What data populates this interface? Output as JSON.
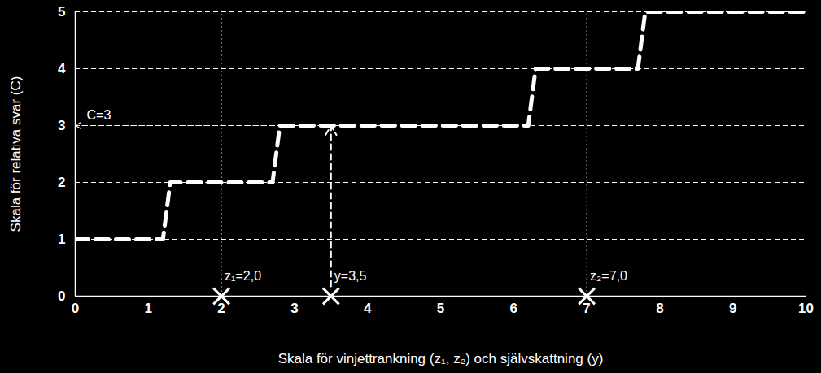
{
  "chart_data": {
    "type": "line",
    "x": [
      0,
      1.2,
      1.3,
      2.7,
      2.8,
      6.2,
      6.3,
      7.7,
      7.8,
      10
    ],
    "values": [
      1,
      1,
      2,
      2,
      3,
      3,
      4,
      4,
      5,
      5
    ],
    "color": "#ffffff",
    "line_style": "dashed",
    "xlabel": "Skala för vinjettrankning (z₁, z₂) och självskattning (y)",
    "ylabel": "Skala för relativa svar (C)",
    "xlim": [
      0,
      10
    ],
    "ylim": [
      0,
      5
    ],
    "xticks": [
      0,
      1,
      2,
      3,
      4,
      5,
      6,
      7,
      8,
      9,
      10
    ],
    "yticks": [
      0,
      1,
      2,
      3,
      4,
      5
    ],
    "grid": true,
    "marker": "x",
    "vignettes": [
      {
        "x": 2,
        "label": "z₁=2,0"
      },
      {
        "x": 7,
        "label": "z₂=7,0"
      }
    ],
    "self_assessment": {
      "x": 3.5,
      "label": "y=3,5"
    },
    "result": {
      "value": 3,
      "label": "C=3"
    }
  }
}
